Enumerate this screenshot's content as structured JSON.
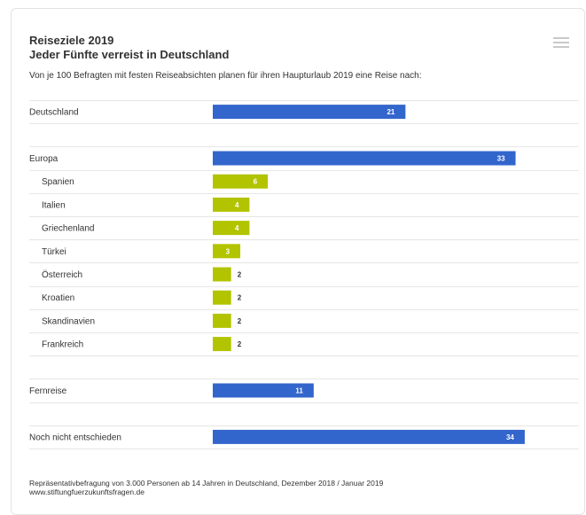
{
  "title": "Reiseziele 2019",
  "subtitle": "Jeder Fünfte verreist in Deutschland",
  "intro": "Von je 100 Befragten mit festen Reiseabsichten planen für ihren Haupturlaub 2019 eine Reise nach:",
  "source_line1": "Repräsentativbefragung von 3.000 Personen ab 14 Jahren in Deutschland, Dezember 2018 / Januar 2019",
  "source_line2": "www.stiftungfuerzukunftsfragen.de",
  "menu_icon": "hamburger-menu-icon",
  "colors": {
    "main": "#3366cc",
    "sub": "#b2c400",
    "grid": "#e6e6e6"
  },
  "chart_data": {
    "type": "bar",
    "orientation": "horizontal",
    "title": "Reiseziele 2019",
    "subtitle": "Jeder Fünfte verreist in Deutschland",
    "categories": [
      "Deutschland",
      "",
      "Europa",
      "Spanien",
      "Italien",
      "Griechenland",
      "Türkei",
      "Österreich",
      "Kroatien",
      "Skandinavien",
      "Frankreich",
      "",
      "Fernreise",
      "",
      "Noch nicht entschieden"
    ],
    "values": [
      21,
      null,
      33,
      6,
      4,
      4,
      3,
      2,
      2,
      2,
      2,
      null,
      11,
      null,
      34
    ],
    "kind": [
      "main",
      "gap",
      "main",
      "sub",
      "sub",
      "sub",
      "sub",
      "sub",
      "sub",
      "sub",
      "sub",
      "gap",
      "main",
      "gap",
      "main"
    ],
    "indent": [
      false,
      false,
      false,
      true,
      true,
      true,
      true,
      true,
      true,
      true,
      true,
      false,
      false,
      false,
      false
    ],
    "value_labels": [
      "21",
      "",
      "33",
      "6",
      "4",
      "4",
      "3",
      "2",
      "2",
      "2",
      "2",
      "",
      "11",
      "",
      "34"
    ],
    "xlim": [
      0,
      40
    ],
    "grid": true,
    "legend": "none"
  }
}
